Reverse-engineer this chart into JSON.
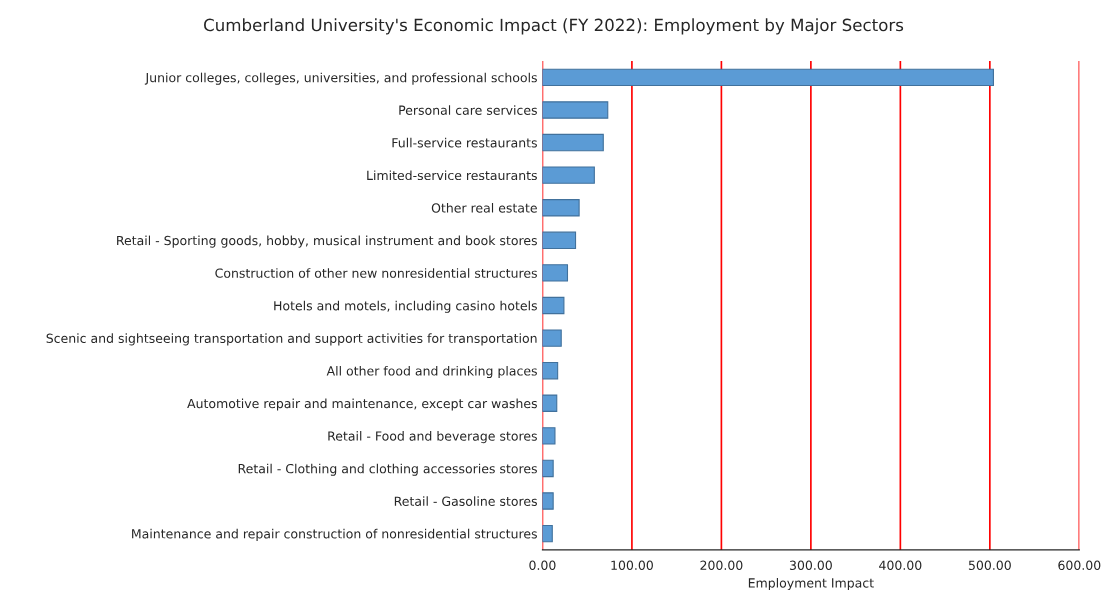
{
  "chart_data": {
    "type": "bar",
    "orientation": "horizontal",
    "title": "Cumberland University's Economic Impact (FY 2022): Employment by Major Sectors",
    "xlabel": "Employment Impact",
    "categories": [
      "Junior colleges, colleges, universities, and professional schools",
      "Personal care services",
      "Full-service restaurants",
      "Limited-service restaurants",
      "Other real estate",
      "Retail - Sporting goods, hobby, musical instrument and book stores",
      "Construction of other new nonresidential structures",
      "Hotels and motels, including casino hotels",
      "Scenic and sightseeing transportation and support activities for transportation",
      "All other food and drinking places",
      "Automotive repair and maintenance, except car washes",
      "Retail - Food and beverage stores",
      "Retail - Clothing and clothing accessories stores",
      "Retail - Gasoline stores",
      "Maintenance and repair construction of nonresidential structures"
    ],
    "values": [
      504,
      73,
      68,
      58,
      41,
      37,
      28,
      24,
      21,
      17,
      16,
      14,
      12,
      12,
      11
    ],
    "color": "#5b9bd5",
    "xlim": [
      0,
      600
    ],
    "xticks": [
      {
        "value": 0,
        "label": "0.00"
      },
      {
        "value": 100,
        "label": "100.00"
      },
      {
        "value": 200,
        "label": "200.00"
      },
      {
        "value": 300,
        "label": "300.00"
      },
      {
        "value": 400,
        "label": "400.00"
      },
      {
        "value": 500,
        "label": "500.00"
      },
      {
        "value": 600,
        "label": "600.00"
      }
    ],
    "grid": "x",
    "legend": false
  }
}
